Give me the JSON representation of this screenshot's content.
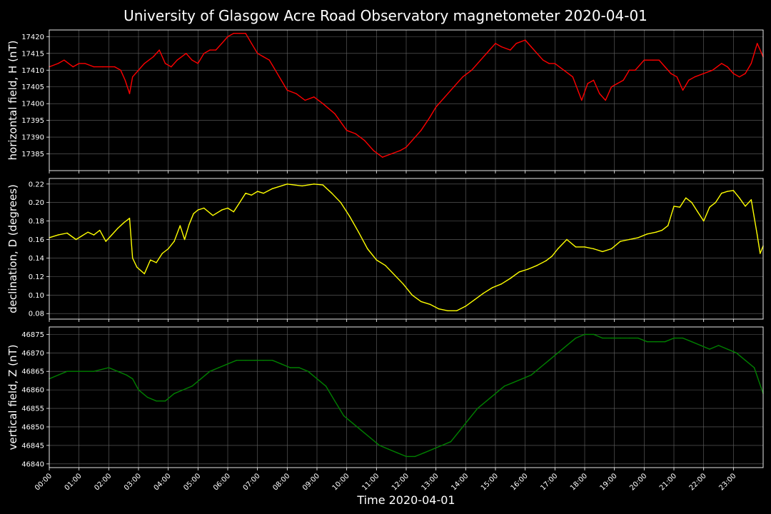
{
  "figure": {
    "title": "University of Glasgow Acre Road Observatory magnetometer 2020-04-01",
    "xlabel": "Time 2020-04-01",
    "x_ticks": [
      "00:00",
      "01:00",
      "02:00",
      "03:00",
      "04:00",
      "05:00",
      "06:00",
      "07:00",
      "08:00",
      "09:00",
      "10:00",
      "11:00",
      "12:00",
      "13:00",
      "14:00",
      "15:00",
      "16:00",
      "17:00",
      "18:00",
      "19:00",
      "20:00",
      "21:00",
      "22:00",
      "23:00"
    ],
    "background": "#000000",
    "grid_color": "#666666"
  },
  "chart_data": [
    {
      "type": "line",
      "ylabel": "horizontal field, H (nT)",
      "color": "#ff0000",
      "xlim": [
        0,
        24
      ],
      "ylim": [
        17380,
        17422
      ],
      "yticks": [
        17385,
        17390,
        17395,
        17400,
        17405,
        17410,
        17415,
        17420
      ],
      "grid": true,
      "series": [
        {
          "x": [
            0,
            0.3,
            0.5,
            0.8,
            1.0,
            1.2,
            1.5,
            1.8,
            2.0,
            2.2,
            2.4,
            2.55,
            2.7,
            2.8,
            3.0,
            3.2,
            3.5,
            3.7,
            3.9,
            4.1,
            4.3,
            4.6,
            4.8,
            5.0,
            5.2,
            5.4,
            5.6,
            5.8,
            6.0,
            6.2,
            6.4,
            6.6,
            6.8,
            7.0,
            7.2,
            7.4,
            7.6,
            8.0,
            8.3,
            8.6,
            8.9,
            9.2,
            9.6,
            10.0,
            10.3,
            10.6,
            10.9,
            11.2,
            11.5,
            11.8,
            12.0,
            12.2,
            12.5,
            12.8,
            13.0,
            13.3,
            13.6,
            13.9,
            14.2,
            14.5,
            14.8,
            15.0,
            15.2,
            15.5,
            15.7,
            16.0,
            16.2,
            16.4,
            16.6,
            16.8,
            17.0,
            17.3,
            17.6,
            17.9,
            18.1,
            18.3,
            18.5,
            18.7,
            18.9,
            19.1,
            19.3,
            19.5,
            19.7,
            20.0,
            20.3,
            20.5,
            20.7,
            20.9,
            21.1,
            21.3,
            21.5,
            21.7,
            22.0,
            22.3,
            22.6,
            22.8,
            23.0,
            23.2,
            23.4,
            23.6,
            23.8,
            24.0
          ],
          "y": [
            17411,
            17412,
            17413,
            17411,
            17412,
            17412,
            17411,
            17411,
            17411,
            17411,
            17410,
            17407,
            17403,
            17408,
            17410,
            17412,
            17414,
            17416,
            17412,
            17411,
            17413,
            17415,
            17413,
            17412,
            17415,
            17416,
            17416,
            17418,
            17420,
            17421,
            17421,
            17421,
            17418,
            17415,
            17414,
            17413,
            17410,
            17404,
            17403,
            17401,
            17402,
            17400,
            17397,
            17392,
            17391,
            17389,
            17386,
            17384,
            17385,
            17386,
            17387,
            17389,
            17392,
            17396,
            17399,
            17402,
            17405,
            17408,
            17410,
            17413,
            17416,
            17418,
            17417,
            17416,
            17418,
            17419,
            17417,
            17415,
            17413,
            17412,
            17412,
            17410,
            17408,
            17401,
            17406,
            17407,
            17403,
            17401,
            17405,
            17406,
            17407,
            17410,
            17410,
            17413,
            17413,
            17413,
            17411,
            17409,
            17408,
            17404,
            17407,
            17408,
            17409,
            17410,
            17412,
            17411,
            17409,
            17408,
            17409,
            17412,
            17418,
            17414
          ]
        }
      ]
    },
    {
      "type": "line",
      "ylabel": "declination, D (degrees)",
      "color": "#ffff00",
      "xlim": [
        0,
        24
      ],
      "ylim": [
        0.074,
        0.226
      ],
      "yticks": [
        0.08,
        0.1,
        0.12,
        0.14,
        0.16,
        0.18,
        0.2,
        0.22
      ],
      "ytick_labels": [
        "0.08",
        "0.10",
        "0.12",
        "0.14",
        "0.16",
        "0.18",
        "0.20",
        "0.22"
      ],
      "grid": true,
      "series": [
        {
          "x": [
            0,
            0.3,
            0.6,
            0.9,
            1.1,
            1.3,
            1.5,
            1.7,
            1.9,
            2.1,
            2.3,
            2.5,
            2.7,
            2.8,
            2.95,
            3.2,
            3.4,
            3.6,
            3.8,
            4.0,
            4.2,
            4.4,
            4.55,
            4.7,
            4.85,
            5.0,
            5.2,
            5.5,
            5.8,
            6.0,
            6.2,
            6.4,
            6.6,
            6.8,
            7.0,
            7.2,
            7.5,
            8.0,
            8.5,
            8.9,
            9.2,
            9.5,
            9.8,
            10.1,
            10.4,
            10.7,
            11.0,
            11.3,
            11.6,
            11.9,
            12.2,
            12.5,
            12.8,
            13.1,
            13.4,
            13.7,
            14.0,
            14.3,
            14.6,
            14.9,
            15.2,
            15.5,
            15.8,
            16.1,
            16.4,
            16.7,
            16.9,
            17.1,
            17.4,
            17.7,
            18.0,
            18.3,
            18.6,
            18.9,
            19.2,
            19.5,
            19.8,
            20.1,
            20.4,
            20.6,
            20.8,
            21.0,
            21.2,
            21.4,
            21.6,
            21.8,
            22.0,
            22.2,
            22.4,
            22.6,
            22.8,
            23.0,
            23.2,
            23.4,
            23.6,
            23.8,
            23.9,
            24.0
          ],
          "y": [
            0.162,
            0.165,
            0.167,
            0.16,
            0.164,
            0.168,
            0.165,
            0.17,
            0.158,
            0.165,
            0.172,
            0.178,
            0.183,
            0.14,
            0.13,
            0.123,
            0.138,
            0.135,
            0.145,
            0.15,
            0.158,
            0.175,
            0.16,
            0.176,
            0.188,
            0.192,
            0.194,
            0.186,
            0.192,
            0.194,
            0.19,
            0.2,
            0.21,
            0.208,
            0.212,
            0.21,
            0.215,
            0.22,
            0.218,
            0.22,
            0.219,
            0.21,
            0.2,
            0.185,
            0.168,
            0.15,
            0.138,
            0.132,
            0.122,
            0.112,
            0.1,
            0.093,
            0.09,
            0.085,
            0.083,
            0.083,
            0.088,
            0.095,
            0.102,
            0.108,
            0.112,
            0.118,
            0.125,
            0.128,
            0.132,
            0.137,
            0.142,
            0.15,
            0.16,
            0.152,
            0.152,
            0.15,
            0.147,
            0.15,
            0.158,
            0.16,
            0.162,
            0.166,
            0.168,
            0.17,
            0.175,
            0.196,
            0.195,
            0.205,
            0.2,
            0.19,
            0.18,
            0.195,
            0.2,
            0.21,
            0.212,
            0.213,
            0.205,
            0.196,
            0.203,
            0.165,
            0.145,
            0.153
          ]
        }
      ]
    },
    {
      "type": "line",
      "ylabel": "vertical field, Z (nT)",
      "color": "#008000",
      "xlim": [
        0,
        24
      ],
      "ylim": [
        46839,
        46877
      ],
      "yticks": [
        46840,
        46845,
        46850,
        46855,
        46860,
        46865,
        46870,
        46875
      ],
      "grid": true,
      "series": [
        {
          "x": [
            0,
            0.3,
            0.6,
            1.0,
            1.5,
            2.0,
            2.3,
            2.6,
            2.8,
            3.0,
            3.3,
            3.6,
            3.9,
            4.2,
            4.5,
            4.8,
            5.1,
            5.4,
            5.7,
            6.0,
            6.3,
            6.6,
            6.9,
            7.2,
            7.5,
            7.8,
            8.1,
            8.4,
            8.7,
            9.0,
            9.3,
            9.6,
            9.9,
            10.2,
            10.5,
            10.8,
            11.1,
            11.4,
            11.7,
            12.0,
            12.3,
            12.6,
            12.9,
            13.2,
            13.5,
            13.8,
            14.1,
            14.4,
            14.7,
            15.0,
            15.3,
            15.6,
            15.9,
            16.2,
            16.5,
            16.8,
            17.1,
            17.4,
            17.7,
            18.0,
            18.3,
            18.6,
            18.9,
            19.2,
            19.5,
            19.8,
            20.1,
            20.4,
            20.7,
            21.0,
            21.3,
            21.6,
            21.9,
            22.2,
            22.5,
            22.8,
            23.1,
            23.4,
            23.7,
            24.0
          ],
          "y": [
            46863,
            46864,
            46865,
            46865,
            46865,
            46866,
            46865,
            46864,
            46863,
            46860,
            46858,
            46857,
            46857,
            46859,
            46860,
            46861,
            46863,
            46865,
            46866,
            46867,
            46868,
            46868,
            46868,
            46868,
            46868,
            46867,
            46866,
            46866,
            46865,
            46863,
            46861,
            46857,
            46853,
            46851,
            46849,
            46847,
            46845,
            46844,
            46843,
            46842,
            46842,
            46843,
            46844,
            46845,
            46846,
            46849,
            46852,
            46855,
            46857,
            46859,
            46861,
            46862,
            46863,
            46864,
            46866,
            46868,
            46870,
            46872,
            46874,
            46875,
            46875,
            46874,
            46874,
            46874,
            46874,
            46874,
            46873,
            46873,
            46873,
            46874,
            46874,
            46873,
            46872,
            46871,
            46872,
            46871,
            46870,
            46868,
            46866,
            46859
          ]
        }
      ]
    }
  ]
}
